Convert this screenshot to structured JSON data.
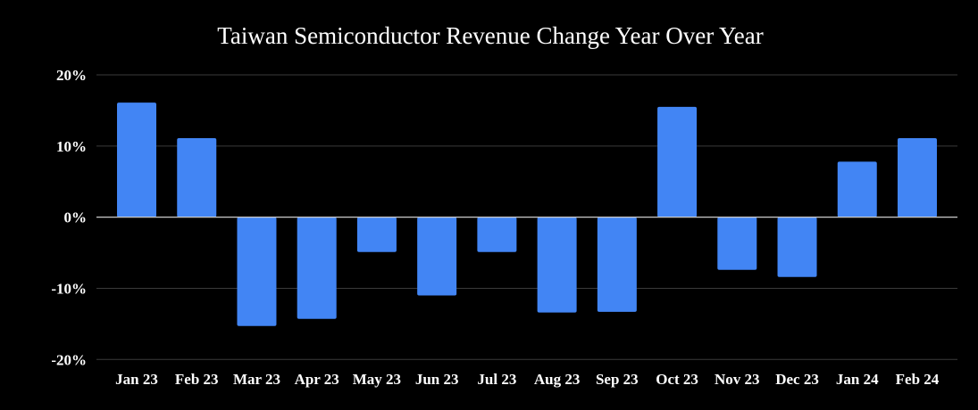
{
  "chart_data": {
    "type": "bar",
    "title": "Taiwan Semiconductor Revenue Change Year Over Year",
    "xlabel": "",
    "ylabel": "",
    "categories": [
      "Jan 23",
      "Feb 23",
      "Mar 23",
      "Apr 23",
      "May 23",
      "Jun 23",
      "Jul 23",
      "Aug 23",
      "Sep 23",
      "Oct 23",
      "Nov 23",
      "Dec 23",
      "Jan 24",
      "Feb 24"
    ],
    "values": [
      16.1,
      11.1,
      -15.3,
      -14.3,
      -4.9,
      -11.0,
      -4.9,
      -13.4,
      -13.3,
      15.5,
      -7.4,
      -8.4,
      7.8,
      11.1
    ],
    "unit": "%",
    "ylim": [
      -20,
      20
    ],
    "yticks": [
      20,
      10,
      0,
      -10,
      -20
    ],
    "ytick_labels": [
      "20%",
      "10%",
      "0%",
      "-10%",
      "-20%"
    ],
    "grid": true,
    "legend": "none",
    "colors": {
      "bar": "#4285f4",
      "background": "#000000",
      "grid": "#3a3a3a",
      "zero_line": "#cccccc",
      "text": "#ffffff"
    }
  }
}
